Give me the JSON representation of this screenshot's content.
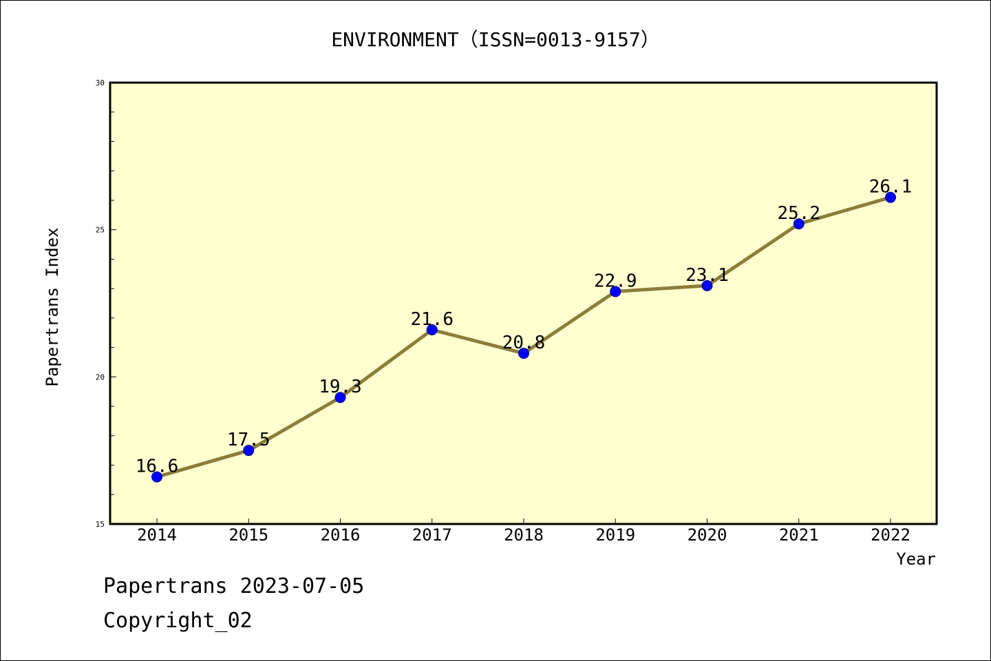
{
  "chart_data": {
    "type": "line",
    "title": "ENVIRONMENT（ISSN=0013-9157）",
    "xlabel": "Year",
    "ylabel": "Papertrans Index",
    "categories": [
      "2014",
      "2015",
      "2016",
      "2017",
      "2018",
      "2019",
      "2020",
      "2021",
      "2022"
    ],
    "series": [
      {
        "values": [
          16.6,
          17.5,
          19.3,
          21.6,
          20.8,
          22.9,
          23.1,
          25.2,
          26.1
        ],
        "labels": [
          "16.6",
          "17.5",
          "19.3",
          "21.6",
          "20.8",
          "22.9",
          "23.1",
          "25.2",
          "26.1"
        ]
      }
    ],
    "ylim": [
      15,
      30
    ],
    "y_ticks": [
      "15",
      "20",
      "25",
      "30"
    ],
    "grid": false,
    "colors": {
      "plot_background": "#ffffd0",
      "line": "#8b7d3a",
      "marker": "#0000ff"
    }
  },
  "footer": {
    "line1": "Papertrans 2023-07-05",
    "line2": "Copyright_02"
  }
}
